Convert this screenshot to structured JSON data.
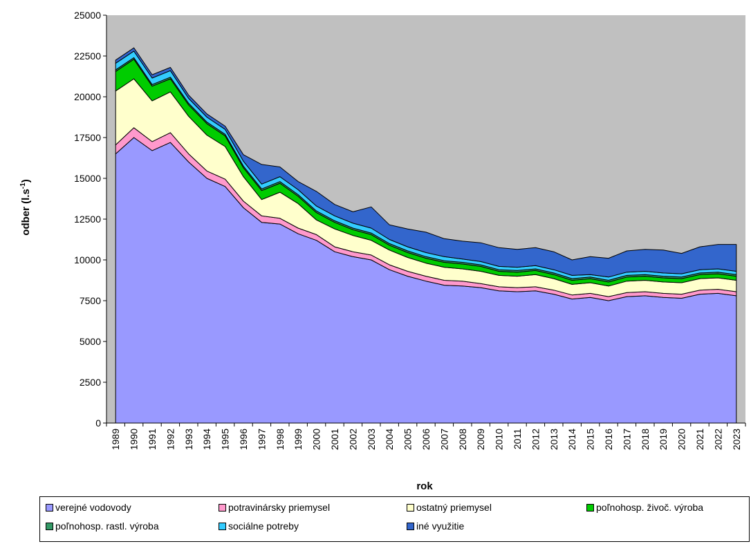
{
  "chart_data": {
    "type": "area",
    "stacked": true,
    "title": "",
    "xlabel": "rok",
    "ylabel_main": "odber (l.s",
    "ylabel_sup": "-1",
    "ylabel_tail": ")",
    "ylim": [
      0,
      25000
    ],
    "yticks": [
      0,
      2500,
      5000,
      7500,
      10000,
      12500,
      15000,
      17500,
      20000,
      22500,
      25000
    ],
    "ytick_labels": [
      "0",
      "2500",
      "5000",
      "7500",
      "10000",
      "12500",
      "15000",
      "17500",
      "20000",
      "22500",
      "25000"
    ],
    "plot_background": "#c0c0c0",
    "grid": false,
    "legend_position": "bottom",
    "x": [
      "1989",
      "1990",
      "1991",
      "1992",
      "1993",
      "1994",
      "1995",
      "1996",
      "1997",
      "1998",
      "1999",
      "2000",
      "2001",
      "2002",
      "2003",
      "2004",
      "2005",
      "2006",
      "2007",
      "2008",
      "2009",
      "2010",
      "2011",
      "2012",
      "2013",
      "2014",
      "2015",
      "2016",
      "2017",
      "2018",
      "2019",
      "2020",
      "2021",
      "2022",
      "2023"
    ],
    "series": [
      {
        "name": "verejné vodovody",
        "color": "#9999ff",
        "values": [
          16500,
          17500,
          16700,
          17200,
          16000,
          15000,
          14500,
          13200,
          12300,
          12200,
          11600,
          11200,
          10500,
          10200,
          10000,
          9400,
          9000,
          8700,
          8450,
          8400,
          8300,
          8100,
          8050,
          8100,
          7900,
          7600,
          7700,
          7500,
          7750,
          7800,
          7700,
          7650,
          7900,
          7950,
          7800
        ]
      },
      {
        "name": "potravinársky priemysel",
        "color": "#ff99cc",
        "values": [
          550,
          600,
          550,
          600,
          500,
          450,
          450,
          400,
          400,
          350,
          350,
          350,
          300,
          300,
          300,
          300,
          300,
          300,
          300,
          300,
          250,
          250,
          250,
          250,
          250,
          250,
          250,
          250,
          250,
          250,
          250,
          250,
          250,
          250,
          250
        ]
      },
      {
        "name": "ostatný priemysel",
        "color": "#ffffcc",
        "values": [
          3300,
          3000,
          2500,
          2500,
          2300,
          2200,
          2000,
          1500,
          1000,
          1600,
          1500,
          900,
          1100,
          1000,
          900,
          900,
          850,
          800,
          800,
          750,
          750,
          700,
          700,
          750,
          700,
          650,
          650,
          650,
          700,
          700,
          700,
          700,
          700,
          700,
          700
        ]
      },
      {
        "name": "poľnohosp. živoč. výroba",
        "color": "#00cc00",
        "values": [
          1200,
          1200,
          900,
          800,
          700,
          700,
          650,
          550,
          550,
          550,
          450,
          450,
          400,
          350,
          350,
          300,
          300,
          300,
          300,
          300,
          300,
          250,
          250,
          250,
          250,
          250,
          250,
          250,
          250,
          250,
          250,
          250,
          250,
          250,
          250
        ]
      },
      {
        "name": "poľnohosp. rastl. výroba",
        "color": "#339966",
        "values": [
          100,
          100,
          100,
          100,
          100,
          100,
          100,
          100,
          100,
          100,
          100,
          100,
          100,
          100,
          100,
          100,
          100,
          100,
          100,
          100,
          100,
          100,
          100,
          100,
          100,
          100,
          100,
          100,
          100,
          100,
          100,
          100,
          100,
          100,
          100
        ]
      },
      {
        "name": "sociálne potreby",
        "color": "#33ccff",
        "values": [
          400,
          400,
          400,
          400,
          300,
          300,
          300,
          300,
          300,
          300,
          300,
          300,
          300,
          300,
          300,
          250,
          250,
          250,
          250,
          200,
          200,
          200,
          200,
          200,
          200,
          200,
          150,
          200,
          200,
          200,
          200,
          200,
          200,
          200,
          200
        ]
      },
      {
        "name": "iné využitie",
        "color": "#3366cc",
        "values": [
          200,
          200,
          200,
          200,
          200,
          200,
          200,
          400,
          1200,
          600,
          500,
          900,
          700,
          700,
          1300,
          900,
          1100,
          1250,
          1100,
          1100,
          1150,
          1150,
          1100,
          1100,
          1100,
          950,
          1100,
          1150,
          1300,
          1350,
          1400,
          1250,
          1400,
          1500,
          1650
        ]
      }
    ]
  }
}
